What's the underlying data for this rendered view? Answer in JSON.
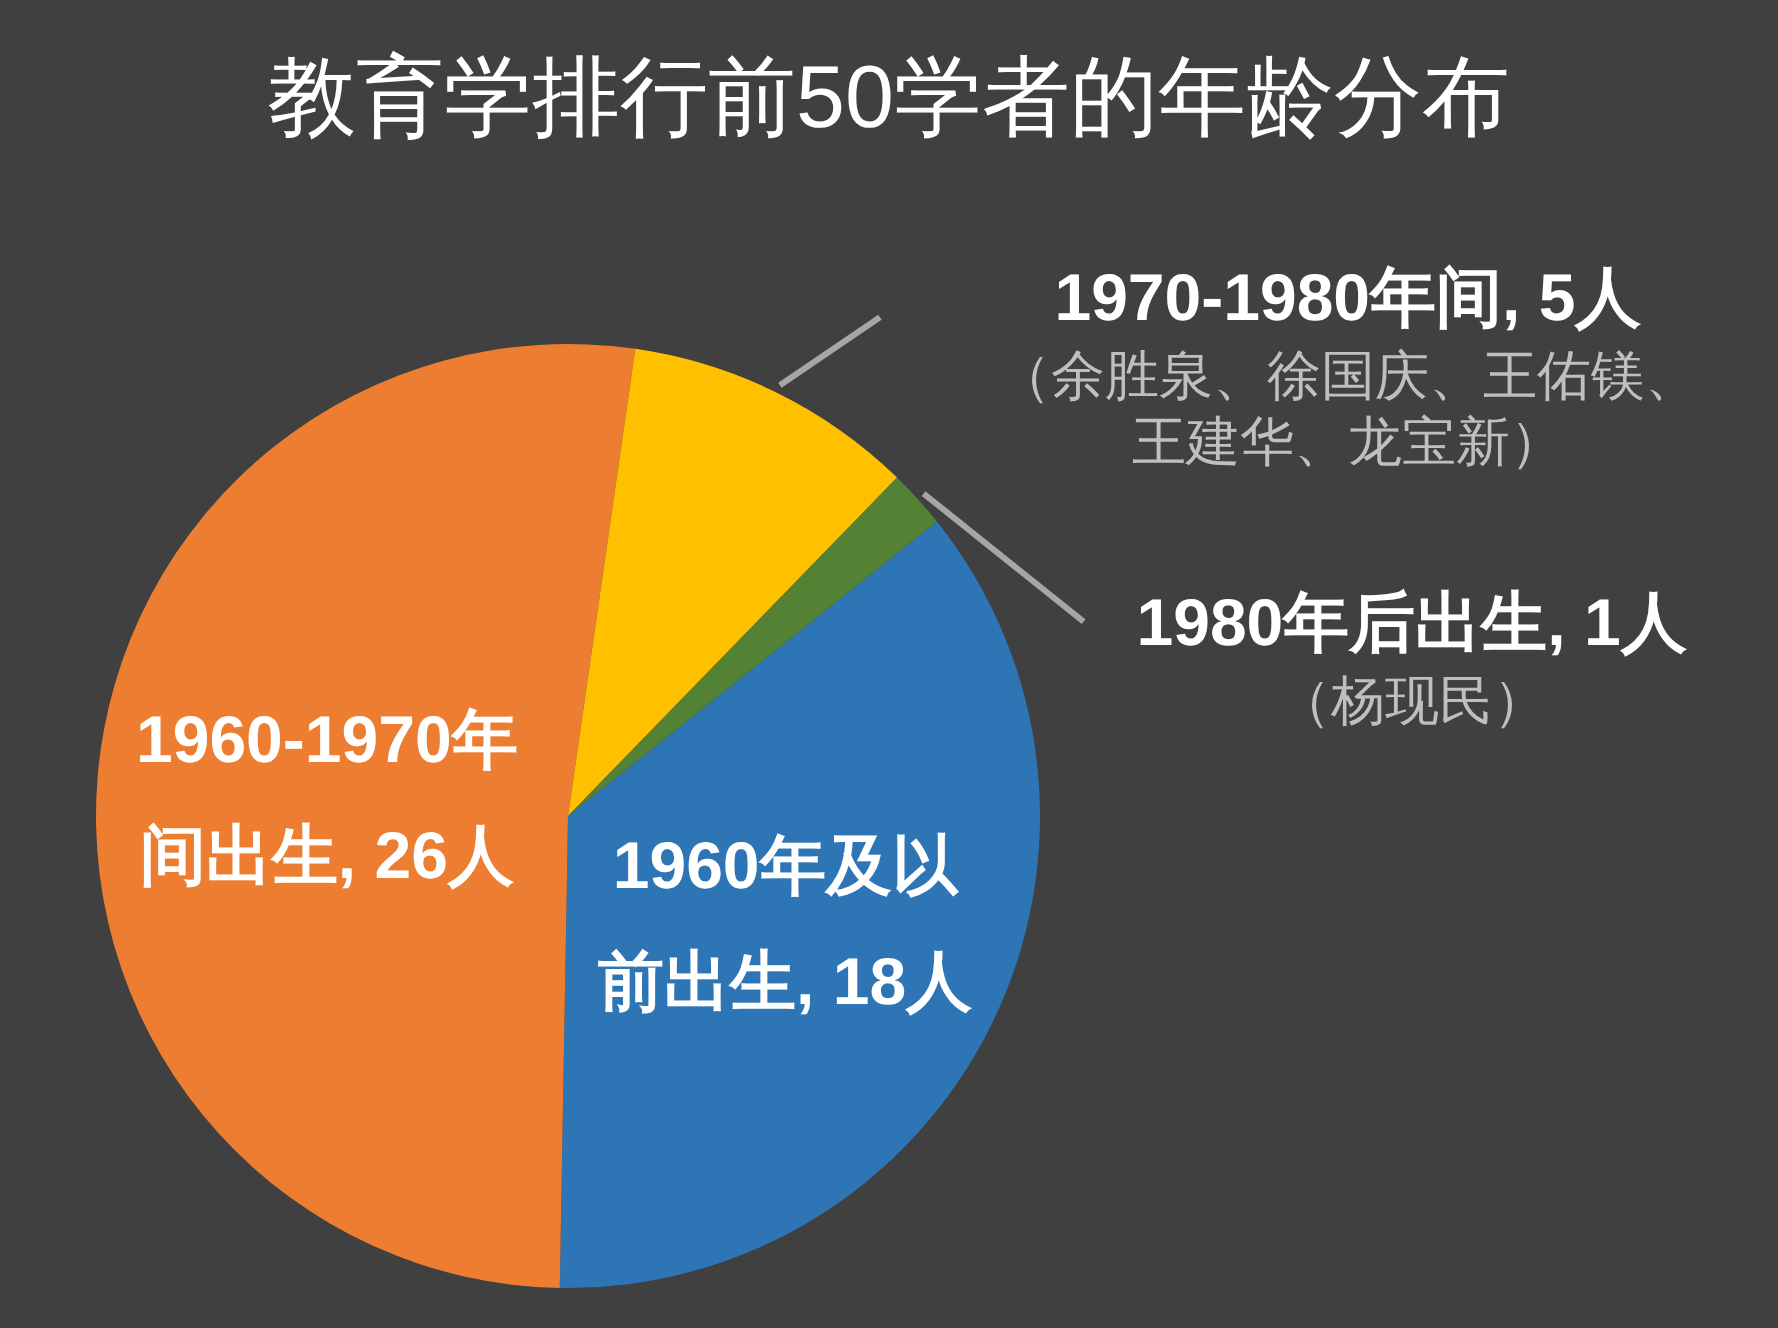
{
  "chart_data": {
    "type": "pie",
    "title": "教育学排行前50学者的年龄分布",
    "categories": [
      "1960年及以前出生, 18人",
      "1960-1970年间出生, 26人",
      "1970-1980年间, 5人",
      "1980年后出生, 1人"
    ],
    "values": [
      18,
      26,
      5,
      1
    ],
    "colors": [
      "#2e75b6",
      "#ed7d31",
      "#ffc000",
      "#548235"
    ],
    "annotations": [
      {
        "text": "（余胜泉、徐国庆、王佑镁、王建华、龙宝新）",
        "x": "1970-1980年间, 5人"
      },
      {
        "text": "（杨现民）",
        "x": "1980年后出生, 1人"
      }
    ]
  }
}
